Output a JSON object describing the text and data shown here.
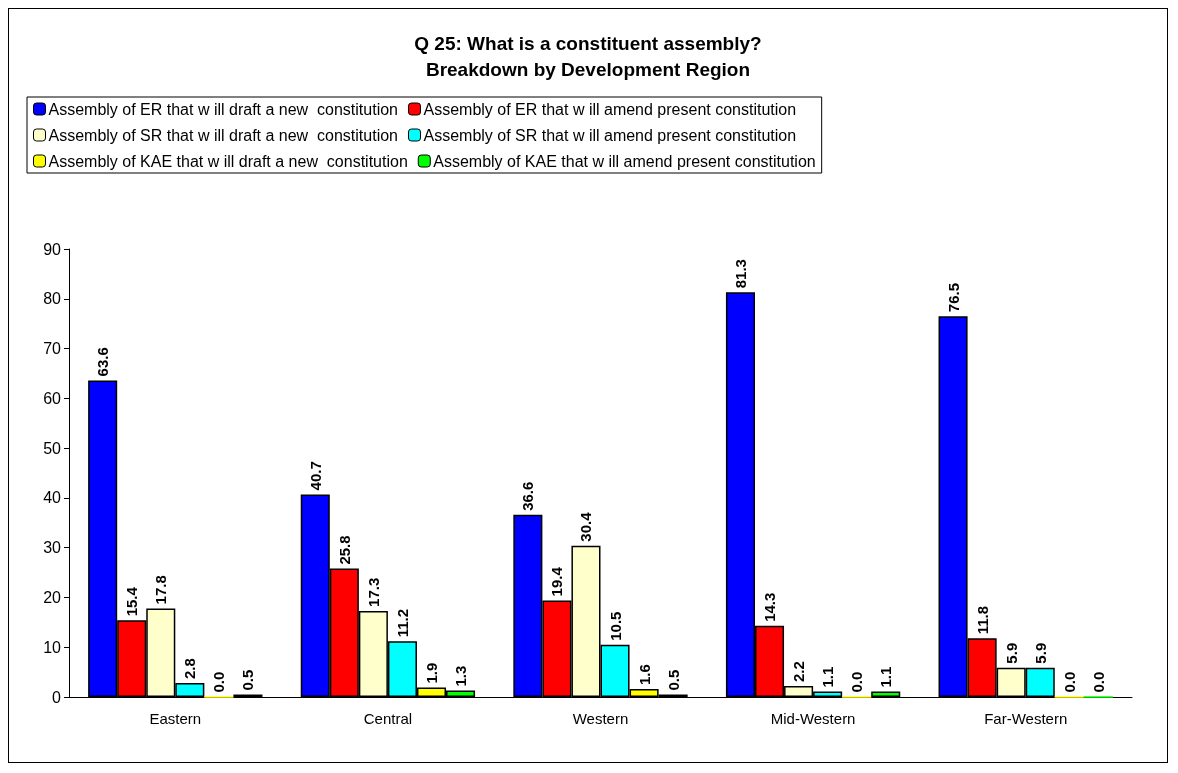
{
  "chart_data": {
    "type": "bar",
    "title": "Q 25: What is a constituent assembly?\nBreakdown by Development Region",
    "categories": [
      "Eastern",
      "Central",
      "Western",
      "Mid-Western",
      "Far-Western"
    ],
    "series": [
      {
        "name": "Assembly of ER that w ill draft a new  constitution",
        "color": "#0000ff",
        "values": [
          63.6,
          40.7,
          36.6,
          81.3,
          76.5
        ],
        "value_labels": [
          "63.6",
          "40.7",
          "36.6",
          "81.3",
          "76.5"
        ]
      },
      {
        "name": "Assembly of ER that w ill amend present constitution",
        "color": "#ff0000",
        "values": [
          15.4,
          25.8,
          19.4,
          14.3,
          11.8
        ],
        "value_labels": [
          "15.4",
          "25.8",
          "19.4",
          "14.3",
          "11.8"
        ]
      },
      {
        "name": "Assembly of SR that w ill draft a new  constitution",
        "color": "#ffffcc",
        "values": [
          17.8,
          17.3,
          30.4,
          2.2,
          5.9
        ],
        "value_labels": [
          "17.8",
          "17.3",
          "30.4",
          "2.2",
          "5.9"
        ]
      },
      {
        "name": "Assembly of SR that w ill amend present constitution",
        "color": "#00ffff",
        "values": [
          2.8,
          11.2,
          10.5,
          1.1,
          5.9
        ],
        "value_labels": [
          "2.8",
          "11.2",
          "10.5",
          "1.1",
          "5.9"
        ]
      },
      {
        "name": "Assembly of KAE that w ill draft a new  constitution",
        "color": "#ffff00",
        "values": [
          0,
          1.9,
          1.6,
          0,
          0
        ],
        "value_labels": [
          "0.0",
          "1.9",
          "1.6",
          "0.0",
          "0.0"
        ]
      },
      {
        "name": "Assembly of KAE that w ill amend present constitution",
        "color": "#00ff00",
        "values": [
          0.5,
          1.3,
          0.5,
          1.1,
          0
        ],
        "value_labels": [
          "0.5",
          "1.3",
          "0.5",
          "1.1",
          "0.0"
        ]
      }
    ],
    "ylim": [
      0,
      90
    ],
    "yticks": [
      0,
      10,
      20,
      30,
      40,
      50,
      60,
      70,
      80,
      90
    ],
    "grid": false,
    "legend": "top"
  }
}
